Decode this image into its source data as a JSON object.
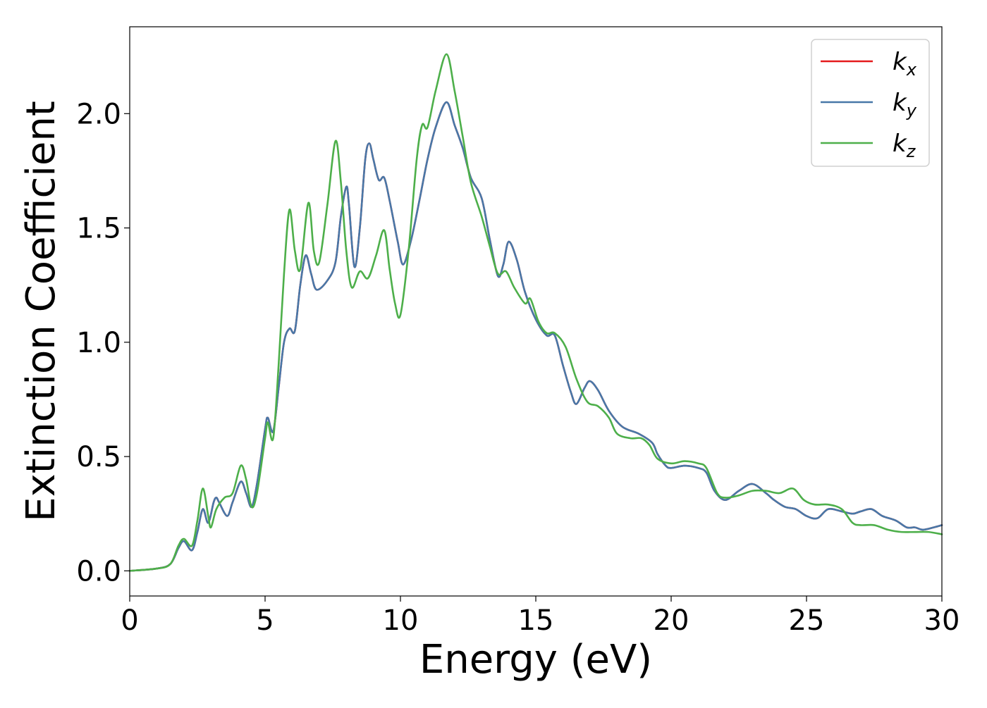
{
  "chart_data": {
    "type": "line",
    "title": "",
    "xlabel": "Energy (eV)",
    "ylabel": "Extinction Coefficient",
    "xlim": [
      0,
      30
    ],
    "ylim": [
      -0.11,
      2.38
    ],
    "xticks": [
      0,
      5,
      10,
      15,
      20,
      25,
      30
    ],
    "xtick_labels": [
      "0",
      "5",
      "10",
      "15",
      "20",
      "25",
      "30"
    ],
    "yticks": [
      0.0,
      0.5,
      1.0,
      1.5,
      2.0
    ],
    "ytick_labels": [
      "0.0",
      "0.5",
      "1.0",
      "1.5",
      "2.0"
    ],
    "grid": false,
    "legend_position": "top-right",
    "series": [
      {
        "name": "k",
        "subscript": "x",
        "color": "#e41a1c",
        "points": [
          [
            0,
            0
          ],
          [
            1,
            0.01
          ],
          [
            1.5,
            0.03
          ],
          [
            1.8,
            0.1
          ],
          [
            2.0,
            0.13
          ],
          [
            2.3,
            0.09
          ],
          [
            2.5,
            0.17
          ],
          [
            2.7,
            0.27
          ],
          [
            2.9,
            0.21
          ],
          [
            3.1,
            0.3
          ],
          [
            3.2,
            0.32
          ],
          [
            3.3,
            0.3
          ],
          [
            3.6,
            0.24
          ],
          [
            3.8,
            0.3
          ],
          [
            4.1,
            0.39
          ],
          [
            4.3,
            0.34
          ],
          [
            4.5,
            0.28
          ],
          [
            4.7,
            0.38
          ],
          [
            5.0,
            0.62
          ],
          [
            5.1,
            0.67
          ],
          [
            5.3,
            0.61
          ],
          [
            5.5,
            0.8
          ],
          [
            5.7,
            1.0
          ],
          [
            5.9,
            1.06
          ],
          [
            6.1,
            1.05
          ],
          [
            6.3,
            1.25
          ],
          [
            6.5,
            1.38
          ],
          [
            6.7,
            1.3
          ],
          [
            6.9,
            1.23
          ],
          [
            7.3,
            1.27
          ],
          [
            7.6,
            1.35
          ],
          [
            7.8,
            1.55
          ],
          [
            8.0,
            1.68
          ],
          [
            8.1,
            1.6
          ],
          [
            8.3,
            1.33
          ],
          [
            8.5,
            1.5
          ],
          [
            8.7,
            1.8
          ],
          [
            8.85,
            1.87
          ],
          [
            9.0,
            1.8
          ],
          [
            9.2,
            1.71
          ],
          [
            9.4,
            1.72
          ],
          [
            9.6,
            1.62
          ],
          [
            9.9,
            1.44
          ],
          [
            10.1,
            1.34
          ],
          [
            10.4,
            1.45
          ],
          [
            10.7,
            1.62
          ],
          [
            11.0,
            1.8
          ],
          [
            11.3,
            1.94
          ],
          [
            11.7,
            2.05
          ],
          [
            12.0,
            1.95
          ],
          [
            12.3,
            1.85
          ],
          [
            12.6,
            1.72
          ],
          [
            13.0,
            1.63
          ],
          [
            13.3,
            1.45
          ],
          [
            13.6,
            1.29
          ],
          [
            13.8,
            1.34
          ],
          [
            14.0,
            1.44
          ],
          [
            14.3,
            1.36
          ],
          [
            14.6,
            1.22
          ],
          [
            15.0,
            1.1
          ],
          [
            15.4,
            1.03
          ],
          [
            15.7,
            1.03
          ],
          [
            16.0,
            0.9
          ],
          [
            16.3,
            0.78
          ],
          [
            16.5,
            0.73
          ],
          [
            16.8,
            0.8
          ],
          [
            17.0,
            0.83
          ],
          [
            17.3,
            0.79
          ],
          [
            17.7,
            0.7
          ],
          [
            18.2,
            0.63
          ],
          [
            18.8,
            0.6
          ],
          [
            19.3,
            0.56
          ],
          [
            19.5,
            0.51
          ],
          [
            19.8,
            0.46
          ],
          [
            20.0,
            0.45
          ],
          [
            20.5,
            0.46
          ],
          [
            21.0,
            0.45
          ],
          [
            21.3,
            0.43
          ],
          [
            21.6,
            0.35
          ],
          [
            22.0,
            0.31
          ],
          [
            22.5,
            0.35
          ],
          [
            23.0,
            0.38
          ],
          [
            23.5,
            0.34
          ],
          [
            23.8,
            0.31
          ],
          [
            24.2,
            0.28
          ],
          [
            24.6,
            0.27
          ],
          [
            25.0,
            0.24
          ],
          [
            25.4,
            0.23
          ],
          [
            25.8,
            0.27
          ],
          [
            26.3,
            0.26
          ],
          [
            26.7,
            0.25
          ],
          [
            27.0,
            0.26
          ],
          [
            27.4,
            0.27
          ],
          [
            27.8,
            0.24
          ],
          [
            28.3,
            0.22
          ],
          [
            28.7,
            0.19
          ],
          [
            29.0,
            0.19
          ],
          [
            29.3,
            0.18
          ],
          [
            29.7,
            0.19
          ],
          [
            30.0,
            0.2
          ]
        ]
      },
      {
        "name": "k",
        "subscript": "y",
        "color": "#4878a8",
        "points": [
          [
            0,
            0
          ],
          [
            1,
            0.01
          ],
          [
            1.5,
            0.03
          ],
          [
            1.8,
            0.1
          ],
          [
            2.0,
            0.13
          ],
          [
            2.3,
            0.09
          ],
          [
            2.5,
            0.17
          ],
          [
            2.7,
            0.27
          ],
          [
            2.9,
            0.21
          ],
          [
            3.1,
            0.3
          ],
          [
            3.2,
            0.32
          ],
          [
            3.3,
            0.3
          ],
          [
            3.6,
            0.24
          ],
          [
            3.8,
            0.3
          ],
          [
            4.1,
            0.39
          ],
          [
            4.3,
            0.34
          ],
          [
            4.5,
            0.28
          ],
          [
            4.7,
            0.38
          ],
          [
            5.0,
            0.62
          ],
          [
            5.1,
            0.67
          ],
          [
            5.3,
            0.61
          ],
          [
            5.5,
            0.8
          ],
          [
            5.7,
            1.0
          ],
          [
            5.9,
            1.06
          ],
          [
            6.1,
            1.05
          ],
          [
            6.3,
            1.25
          ],
          [
            6.5,
            1.38
          ],
          [
            6.7,
            1.3
          ],
          [
            6.9,
            1.23
          ],
          [
            7.3,
            1.27
          ],
          [
            7.6,
            1.35
          ],
          [
            7.8,
            1.55
          ],
          [
            8.0,
            1.68
          ],
          [
            8.1,
            1.6
          ],
          [
            8.3,
            1.33
          ],
          [
            8.5,
            1.5
          ],
          [
            8.7,
            1.8
          ],
          [
            8.85,
            1.87
          ],
          [
            9.0,
            1.8
          ],
          [
            9.2,
            1.71
          ],
          [
            9.4,
            1.72
          ],
          [
            9.6,
            1.62
          ],
          [
            9.9,
            1.44
          ],
          [
            10.1,
            1.34
          ],
          [
            10.4,
            1.45
          ],
          [
            10.7,
            1.62
          ],
          [
            11.0,
            1.8
          ],
          [
            11.3,
            1.94
          ],
          [
            11.7,
            2.05
          ],
          [
            12.0,
            1.95
          ],
          [
            12.3,
            1.85
          ],
          [
            12.6,
            1.72
          ],
          [
            13.0,
            1.63
          ],
          [
            13.3,
            1.45
          ],
          [
            13.6,
            1.29
          ],
          [
            13.8,
            1.34
          ],
          [
            14.0,
            1.44
          ],
          [
            14.3,
            1.36
          ],
          [
            14.6,
            1.22
          ],
          [
            15.0,
            1.1
          ],
          [
            15.4,
            1.03
          ],
          [
            15.7,
            1.03
          ],
          [
            16.0,
            0.9
          ],
          [
            16.3,
            0.78
          ],
          [
            16.5,
            0.73
          ],
          [
            16.8,
            0.8
          ],
          [
            17.0,
            0.83
          ],
          [
            17.3,
            0.79
          ],
          [
            17.7,
            0.7
          ],
          [
            18.2,
            0.63
          ],
          [
            18.8,
            0.6
          ],
          [
            19.3,
            0.56
          ],
          [
            19.5,
            0.51
          ],
          [
            19.8,
            0.46
          ],
          [
            20.0,
            0.45
          ],
          [
            20.5,
            0.46
          ],
          [
            21.0,
            0.45
          ],
          [
            21.3,
            0.43
          ],
          [
            21.6,
            0.35
          ],
          [
            22.0,
            0.31
          ],
          [
            22.5,
            0.35
          ],
          [
            23.0,
            0.38
          ],
          [
            23.5,
            0.34
          ],
          [
            23.8,
            0.31
          ],
          [
            24.2,
            0.28
          ],
          [
            24.6,
            0.27
          ],
          [
            25.0,
            0.24
          ],
          [
            25.4,
            0.23
          ],
          [
            25.8,
            0.27
          ],
          [
            26.3,
            0.26
          ],
          [
            26.7,
            0.25
          ],
          [
            27.0,
            0.26
          ],
          [
            27.4,
            0.27
          ],
          [
            27.8,
            0.24
          ],
          [
            28.3,
            0.22
          ],
          [
            28.7,
            0.19
          ],
          [
            29.0,
            0.19
          ],
          [
            29.3,
            0.18
          ],
          [
            29.7,
            0.19
          ],
          [
            30.0,
            0.2
          ]
        ]
      },
      {
        "name": "k",
        "subscript": "z",
        "color": "#4daf4a",
        "points": [
          [
            0,
            0
          ],
          [
            1,
            0.01
          ],
          [
            1.5,
            0.03
          ],
          [
            1.8,
            0.11
          ],
          [
            2.0,
            0.14
          ],
          [
            2.3,
            0.11
          ],
          [
            2.5,
            0.22
          ],
          [
            2.7,
            0.36
          ],
          [
            2.9,
            0.24
          ],
          [
            3.0,
            0.19
          ],
          [
            3.2,
            0.27
          ],
          [
            3.5,
            0.32
          ],
          [
            3.8,
            0.34
          ],
          [
            4.1,
            0.46
          ],
          [
            4.3,
            0.4
          ],
          [
            4.5,
            0.28
          ],
          [
            4.7,
            0.34
          ],
          [
            5.0,
            0.58
          ],
          [
            5.1,
            0.65
          ],
          [
            5.3,
            0.58
          ],
          [
            5.5,
            0.9
          ],
          [
            5.7,
            1.3
          ],
          [
            5.9,
            1.58
          ],
          [
            6.1,
            1.4
          ],
          [
            6.3,
            1.32
          ],
          [
            6.6,
            1.61
          ],
          [
            6.8,
            1.4
          ],
          [
            7.0,
            1.35
          ],
          [
            7.3,
            1.6
          ],
          [
            7.6,
            1.88
          ],
          [
            7.8,
            1.7
          ],
          [
            8.0,
            1.4
          ],
          [
            8.2,
            1.24
          ],
          [
            8.5,
            1.31
          ],
          [
            8.8,
            1.28
          ],
          [
            9.1,
            1.38
          ],
          [
            9.4,
            1.49
          ],
          [
            9.6,
            1.32
          ],
          [
            9.8,
            1.17
          ],
          [
            10.0,
            1.12
          ],
          [
            10.3,
            1.4
          ],
          [
            10.6,
            1.8
          ],
          [
            10.8,
            1.95
          ],
          [
            11.0,
            1.94
          ],
          [
            11.3,
            2.1
          ],
          [
            11.7,
            2.26
          ],
          [
            12.0,
            2.1
          ],
          [
            12.3,
            1.9
          ],
          [
            12.6,
            1.7
          ],
          [
            13.0,
            1.55
          ],
          [
            13.3,
            1.42
          ],
          [
            13.6,
            1.3
          ],
          [
            13.9,
            1.31
          ],
          [
            14.2,
            1.24
          ],
          [
            14.6,
            1.17
          ],
          [
            14.8,
            1.19
          ],
          [
            15.1,
            1.09
          ],
          [
            15.4,
            1.04
          ],
          [
            15.7,
            1.04
          ],
          [
            16.1,
            0.98
          ],
          [
            16.5,
            0.84
          ],
          [
            16.9,
            0.74
          ],
          [
            17.3,
            0.72
          ],
          [
            17.7,
            0.67
          ],
          [
            18.0,
            0.6
          ],
          [
            18.5,
            0.58
          ],
          [
            18.9,
            0.58
          ],
          [
            19.2,
            0.55
          ],
          [
            19.5,
            0.49
          ],
          [
            20.0,
            0.47
          ],
          [
            20.5,
            0.48
          ],
          [
            21.0,
            0.47
          ],
          [
            21.3,
            0.45
          ],
          [
            21.7,
            0.34
          ],
          [
            22.0,
            0.32
          ],
          [
            22.5,
            0.33
          ],
          [
            23.0,
            0.35
          ],
          [
            23.5,
            0.35
          ],
          [
            24.0,
            0.34
          ],
          [
            24.5,
            0.36
          ],
          [
            24.9,
            0.31
          ],
          [
            25.3,
            0.29
          ],
          [
            25.8,
            0.29
          ],
          [
            26.3,
            0.27
          ],
          [
            26.7,
            0.21
          ],
          [
            27.0,
            0.2
          ],
          [
            27.5,
            0.2
          ],
          [
            28.0,
            0.18
          ],
          [
            28.5,
            0.17
          ],
          [
            29.0,
            0.17
          ],
          [
            29.5,
            0.17
          ],
          [
            30.0,
            0.16
          ]
        ]
      }
    ]
  }
}
